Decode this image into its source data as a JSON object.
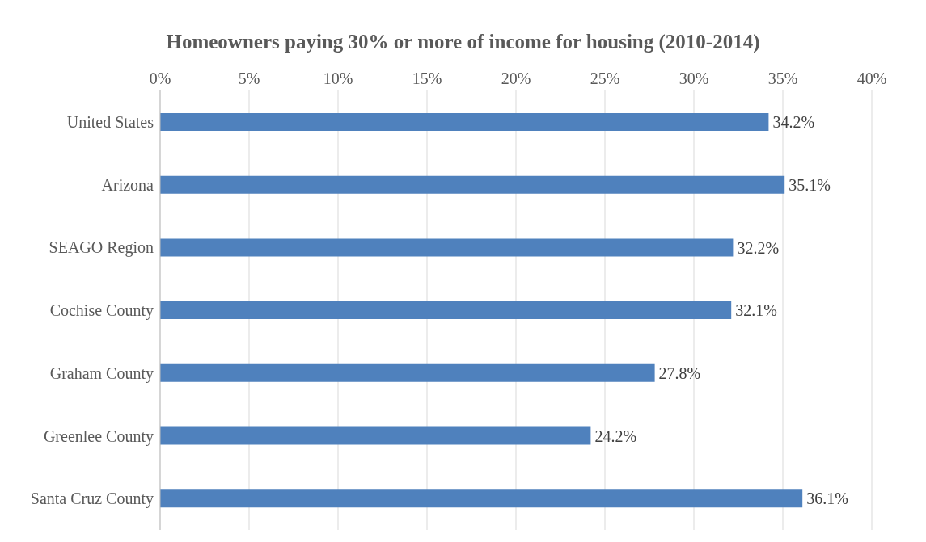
{
  "chart_data": {
    "type": "bar",
    "orientation": "horizontal",
    "title": "Homeowners paying 30% or more of income for housing (2010-2014)",
    "categories": [
      "United States",
      "Arizona",
      "SEAGO Region",
      "Cochise County",
      "Graham County",
      "Greenlee County",
      "Santa Cruz County"
    ],
    "values": [
      34.2,
      35.1,
      32.2,
      32.1,
      27.8,
      24.2,
      36.1
    ],
    "value_labels": [
      "34.2%",
      "35.1%",
      "32.2%",
      "32.1%",
      "27.8%",
      "24.2%",
      "36.1%"
    ],
    "color": "#4f81bd",
    "xlim": [
      0,
      40
    ],
    "xticks": [
      {
        "value": 0,
        "label": "0%"
      },
      {
        "value": 5,
        "label": "5%"
      },
      {
        "value": 10,
        "label": "10%"
      },
      {
        "value": 15,
        "label": "15%"
      },
      {
        "value": 20,
        "label": "20%"
      },
      {
        "value": 25,
        "label": "25%"
      },
      {
        "value": 30,
        "label": "30%"
      },
      {
        "value": 35,
        "label": "35%"
      },
      {
        "value": 40,
        "label": "40%"
      }
    ],
    "grid": "x"
  }
}
